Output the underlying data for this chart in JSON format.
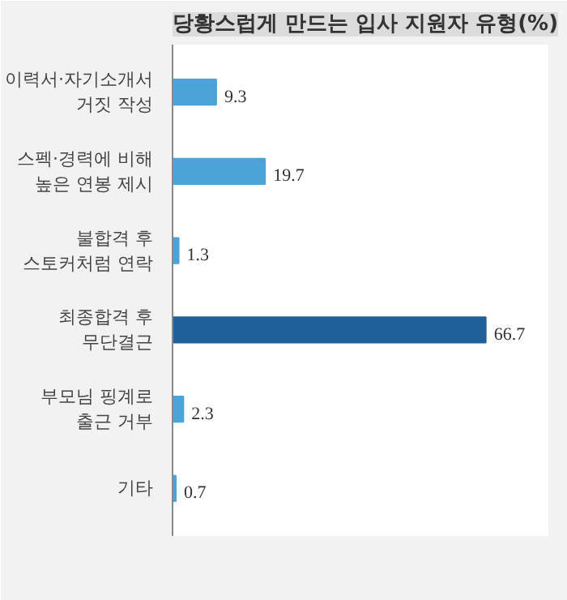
{
  "chart_data": {
    "type": "bar",
    "orientation": "horizontal",
    "title": "당황스럽게 만드는 입사 지원자 유형(%)",
    "categories": [
      "이력서·자기소개서\n거짓 작성",
      "스펙·경력에 비해\n높은 연봉 제시",
      "불합격 후\n스토커처럼 연락",
      "최종합격 후\n무단결근",
      "부모님 핑계로\n출근 거부",
      "기타"
    ],
    "values": [
      9.3,
      19.7,
      1.3,
      66.7,
      2.3,
      0.7
    ],
    "colors": [
      "#4ba3d8",
      "#4ba3d8",
      "#4ba3d8",
      "#1f5f9a",
      "#4ba3d8",
      "#4ba3d8"
    ],
    "data_labels": true,
    "grid": false
  }
}
